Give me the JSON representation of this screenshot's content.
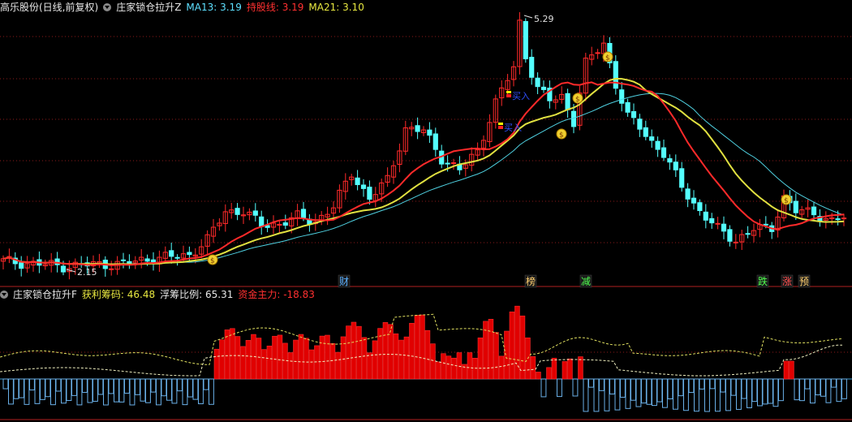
{
  "top_panel": {
    "stock_title": "高乐股份(日线,前复权)",
    "indicator_name": "庄家锁仓拉升Z",
    "ma13_label": "MA13: 3.19",
    "hold_label": "持股线: 3.19",
    "ma21_label": "MA21: 3.10",
    "high_label": "5.29",
    "low_label": "2.15",
    "buy_text": "买入",
    "event_labels": [
      "财",
      "榜",
      "减",
      "跌",
      "涨",
      "预"
    ]
  },
  "bottom_panel": {
    "indicator_name": "庄家锁仓拉升F",
    "profit_label": "获利筹码: 46.48",
    "float_label": "浮筹比例: 65.31",
    "fund_label": "资金主力: -18.83"
  },
  "colors": {
    "up": "#ff2a2a",
    "down": "#54ffff",
    "ma13": "#ff2a2a",
    "ma21": "#e0e040",
    "thin": "#4fd0e0",
    "grid": "#8b1a1a"
  }
}
